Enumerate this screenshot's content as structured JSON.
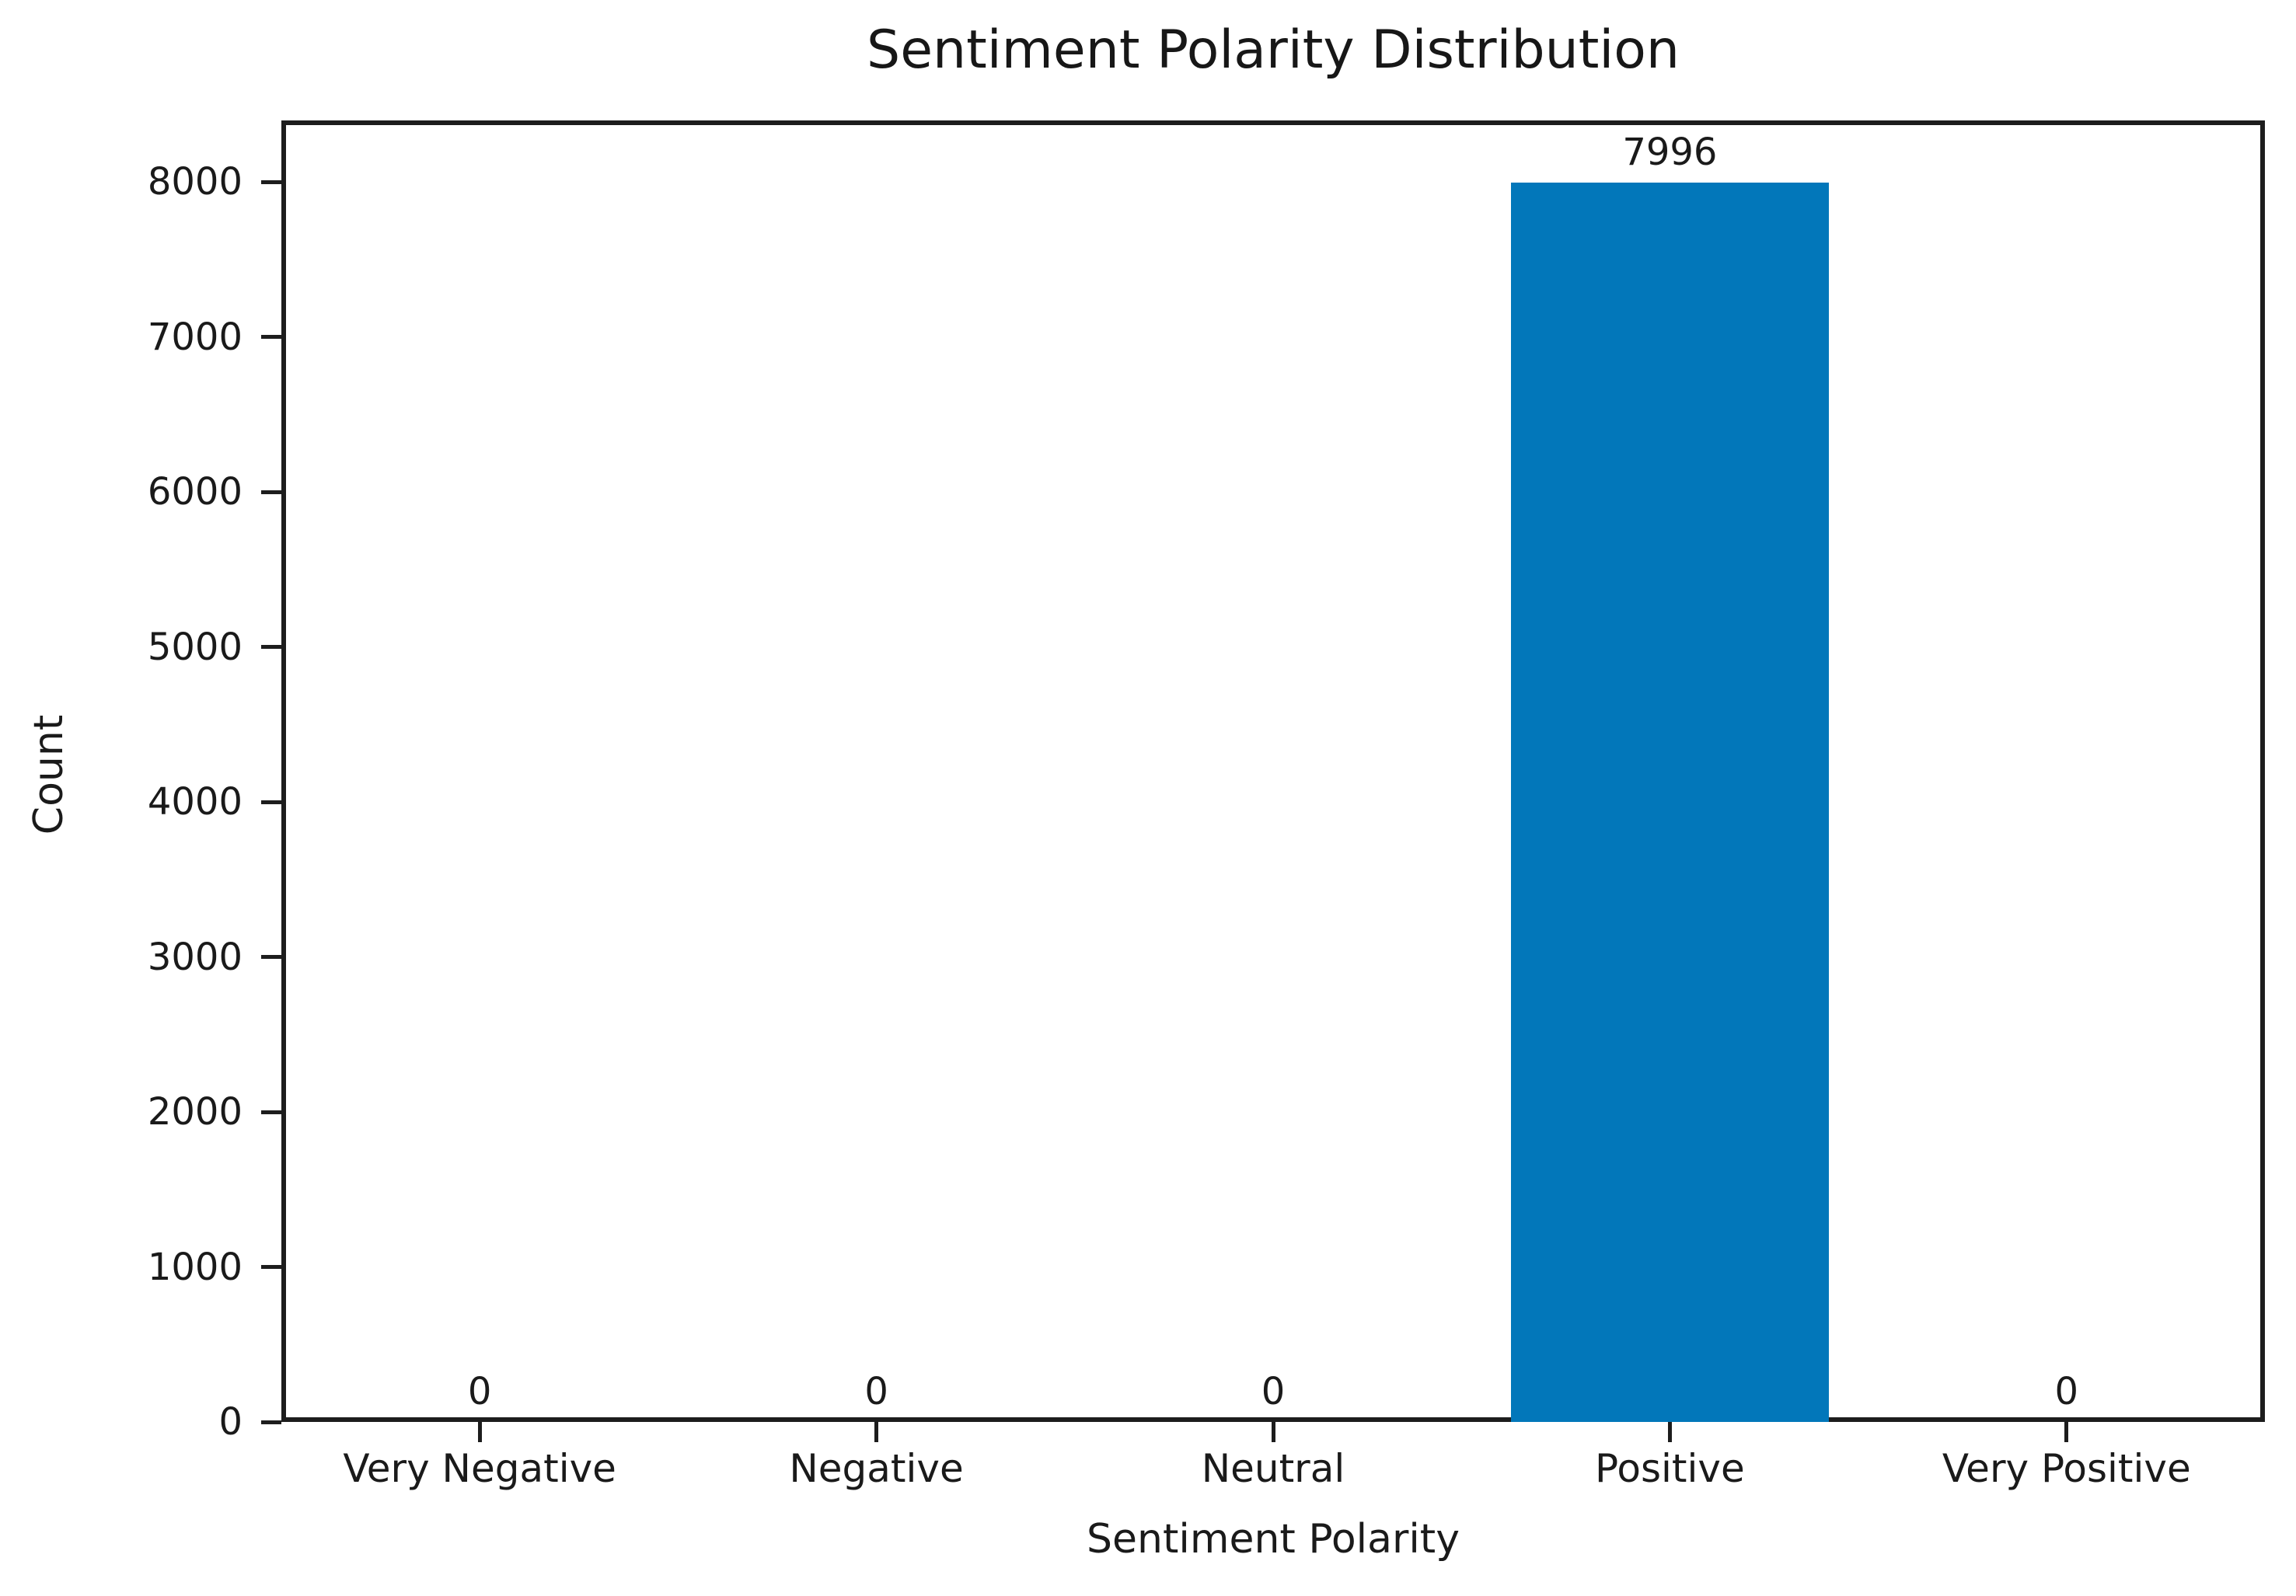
{
  "chart_data": {
    "type": "bar",
    "title": "Sentiment Polarity Distribution",
    "xlabel": "Sentiment Polarity",
    "ylabel": "Count",
    "categories": [
      "Very Negative",
      "Negative",
      "Neutral",
      "Positive",
      "Very Positive"
    ],
    "values": [
      0,
      0,
      0,
      7996,
      0
    ],
    "bar_labels": [
      "0",
      "0",
      "0",
      "7996",
      "0"
    ],
    "yticks": [
      0,
      1000,
      2000,
      3000,
      4000,
      5000,
      6000,
      7000,
      8000
    ],
    "ytick_labels": [
      "0",
      "1000",
      "2000",
      "3000",
      "4000",
      "5000",
      "6000",
      "7000",
      "8000"
    ],
    "ylim": [
      0,
      8396
    ],
    "bar_width_fraction": 0.8,
    "grid": false,
    "legend": null,
    "colors": {
      "bar": "#0277ba",
      "axis": "#1d1d1d",
      "text": "#171717",
      "background": "#ffffff"
    }
  }
}
